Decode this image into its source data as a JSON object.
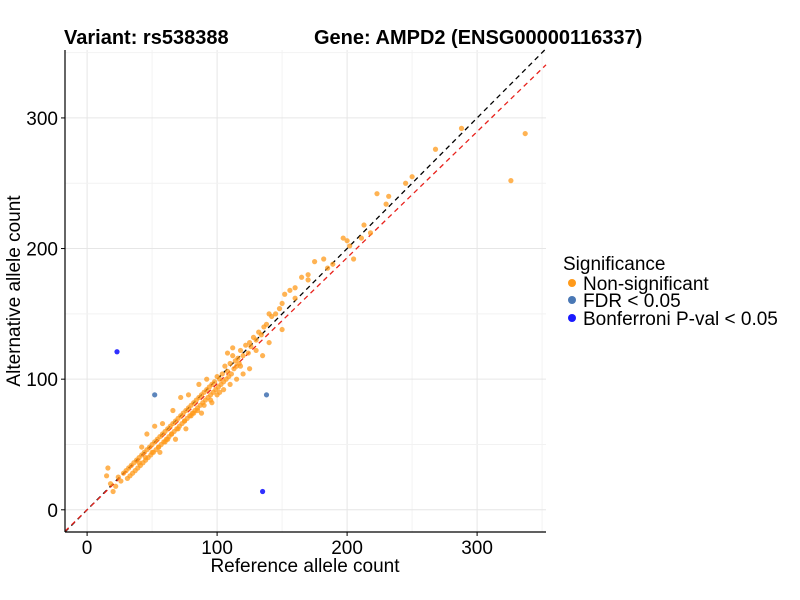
{
  "header": {
    "variant_label": "Variant: rs538388",
    "gene_label": "Gene: AMPD2 (ENSG00000116337)"
  },
  "legend": {
    "title": "Significance",
    "items": [
      {
        "label": "Non-significant",
        "color": "#ff9a1a"
      },
      {
        "label": "FDR < 0.05",
        "color": "#4a78b5"
      },
      {
        "label": "Bonferroni P-val < 0.05",
        "color": "#1a1aff"
      }
    ]
  },
  "chart_data": {
    "type": "scatter",
    "title": "Variant: rs538388    Gene: AMPD2 (ENSG00000116337)",
    "xlabel": "Reference allele count",
    "ylabel": "Alternative allele count",
    "xlim": [
      -17,
      353
    ],
    "ylim": [
      -17,
      352
    ],
    "xticks": [
      0,
      100,
      200,
      300
    ],
    "yticks": [
      0,
      100,
      200,
      300
    ],
    "grid": true,
    "legend_position": "right",
    "reference_lines": [
      {
        "name": "identity",
        "slope": 1.0,
        "intercept": 0,
        "color": "#000000",
        "style": "dashed"
      },
      {
        "name": "fit",
        "slope": 0.965,
        "intercept": 0,
        "color": "#e8221c",
        "style": "dashed"
      }
    ],
    "series": [
      {
        "name": "Non-significant",
        "color": "#ff9a1a",
        "x": [
          337,
          326,
          288,
          268,
          250,
          245,
          232,
          230,
          223,
          218,
          213,
          211,
          205,
          202,
          200,
          197,
          189,
          185,
          182,
          175,
          170,
          165,
          160,
          156,
          152,
          150,
          148,
          145,
          142,
          140,
          138,
          136,
          134,
          132,
          130,
          128,
          126,
          125,
          124,
          122,
          120,
          118,
          117,
          116,
          115,
          114,
          113,
          112,
          111,
          110,
          109,
          108,
          107,
          106,
          105,
          104,
          103,
          102,
          101,
          100,
          99,
          98,
          97,
          96,
          95,
          94,
          93,
          92,
          91,
          90,
          89,
          88,
          87,
          86,
          85,
          84,
          83,
          82,
          81,
          80,
          79,
          78,
          77,
          76,
          75,
          74,
          73,
          72,
          71,
          70,
          69,
          68,
          67,
          66,
          65,
          64,
          63,
          62,
          61,
          60,
          59,
          58,
          57,
          56,
          55,
          54,
          53,
          52,
          51,
          50,
          49,
          48,
          47,
          46,
          45,
          44,
          43,
          42,
          41,
          40,
          39,
          38,
          37,
          36,
          35,
          34,
          33,
          32,
          31,
          30,
          28,
          26,
          24,
          22,
          20,
          18,
          16,
          15,
          150,
          160,
          170,
          135,
          125,
          115,
          105,
          95,
          85,
          75,
          65,
          55,
          45,
          140,
          130,
          120,
          110,
          100,
          90,
          80,
          70,
          60,
          50,
          40,
          112,
          102,
          92,
          82,
          72,
          62,
          52,
          42,
          96,
          86,
          76,
          66,
          56,
          46,
          118,
          108,
          88,
          78,
          68,
          58
        ],
        "y": [
          288,
          252,
          292,
          276,
          255,
          250,
          240,
          234,
          242,
          212,
          218,
          208,
          192,
          202,
          206,
          208,
          188,
          185,
          192,
          190,
          180,
          178,
          170,
          168,
          165,
          158,
          154,
          150,
          148,
          150,
          142,
          140,
          134,
          136,
          130,
          132,
          125,
          128,
          120,
          126,
          118,
          122,
          112,
          116,
          110,
          114,
          108,
          118,
          104,
          112,
          102,
          106,
          100,
          110,
          98,
          104,
          96,
          100,
          94,
          102,
          92,
          98,
          90,
          96,
          88,
          94,
          86,
          92,
          84,
          90,
          82,
          88,
          80,
          86,
          78,
          84,
          76,
          82,
          74,
          80,
          72,
          78,
          70,
          76,
          68,
          74,
          66,
          72,
          64,
          70,
          62,
          68,
          60,
          66,
          58,
          64,
          56,
          62,
          54,
          60,
          52,
          58,
          50,
          56,
          48,
          54,
          46,
          52,
          44,
          50,
          42,
          48,
          40,
          46,
          38,
          44,
          36,
          42,
          34,
          40,
          32,
          38,
          30,
          36,
          28,
          34,
          26,
          32,
          24,
          30,
          28,
          22,
          25,
          18,
          14,
          20,
          32,
          26,
          138,
          162,
          176,
          118,
          108,
          100,
          92,
          84,
          76,
          68,
          58,
          48,
          40,
          128,
          122,
          104,
          96,
          88,
          80,
          72,
          62,
          52,
          44,
          36,
          124,
          90,
          100,
          74,
          86,
          54,
          64,
          48,
          82,
          96,
          62,
          76,
          44,
          58,
          110,
          120,
          74,
          88,
          54,
          66
        ]
      },
      {
        "name": "FDR < 0.05",
        "color": "#4a78b5",
        "x": [
          52,
          138
        ],
        "y": [
          88,
          88
        ]
      },
      {
        "name": "Bonferroni P-val < 0.05",
        "color": "#1a1aff",
        "x": [
          23,
          135
        ],
        "y": [
          121,
          14
        ]
      }
    ]
  }
}
